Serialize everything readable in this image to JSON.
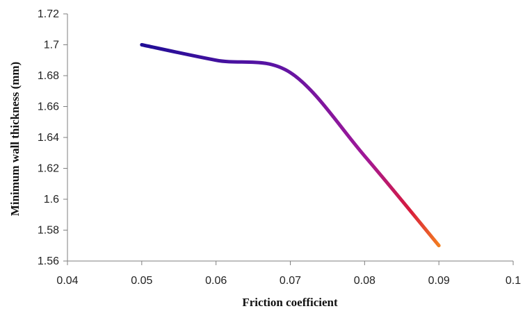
{
  "chart_data": {
    "type": "line",
    "title": "",
    "xlabel": "Friction coefficient",
    "ylabel": "Minimum wall thickness (mm)",
    "xlim": [
      0.04,
      0.1
    ],
    "ylim": [
      1.56,
      1.72
    ],
    "x_ticks": [
      "0.04",
      "0.05",
      "0.06",
      "0.07",
      "0.08",
      "0.09",
      "0.1"
    ],
    "y_ticks": [
      "1.56",
      "1.58",
      "1.6",
      "1.62",
      "1.64",
      "1.66",
      "1.68",
      "1.7",
      "1.72"
    ],
    "grid": false,
    "legend": "none",
    "series": [
      {
        "x": [
          0.05,
          0.06,
          0.07,
          0.08,
          0.09
        ],
        "y": [
          1.7,
          1.69,
          1.682,
          1.628,
          1.57
        ]
      }
    ],
    "colors": {
      "gradient_start": "#1f0d96",
      "gradient_mid": "#7a1aa8",
      "gradient_red": "#d81b3c",
      "gradient_end": "#f4821f",
      "axis": "#7f7f7f"
    }
  }
}
